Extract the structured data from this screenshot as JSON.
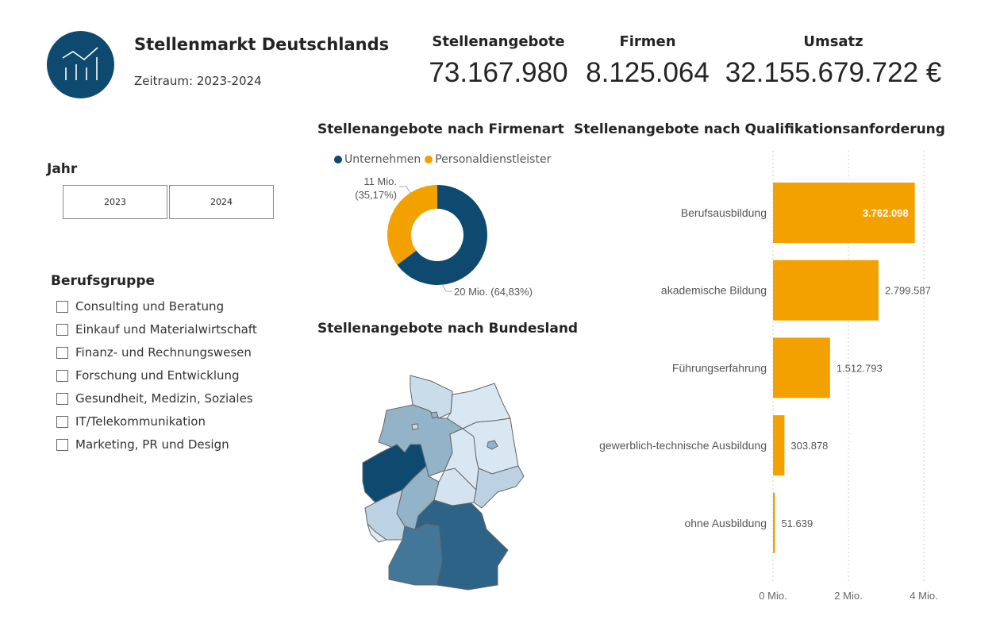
{
  "header": {
    "title": "Stellenmarkt Deutschlands",
    "subtitle": "Zeitraum: 2023-2024",
    "logo_icon": "chart-trend-icon"
  },
  "kpis": [
    {
      "label": "Stellenangebote",
      "value": "73.167.980"
    },
    {
      "label": "Firmen",
      "value": "8.125.064"
    },
    {
      "label": "Umsatz",
      "value": "32.155.679.722 €"
    }
  ],
  "year_slicer": {
    "title": "Jahr",
    "options": [
      "2023",
      "2024"
    ]
  },
  "group_slicer": {
    "title": "Berufsgruppe",
    "items": [
      "Consulting und Beratung",
      "Einkauf und Materialwirtschaft",
      "Finanz- und Rechnungswesen",
      "Forschung und Entwicklung",
      "Gesundheit, Medizin, Soziales",
      "IT/Telekommunikation",
      "Marketing, PR und Design"
    ]
  },
  "colors": {
    "primary": "#0e4a70",
    "accent": "#f2a100"
  },
  "chart_data": [
    {
      "type": "pie",
      "title": "Stellenangebote nach Firmenart",
      "legend": "top",
      "series": [
        {
          "name": "Unternehmen",
          "value": 64.83,
          "label": "20 Mio. (64,83%)",
          "color": "#0e4a70"
        },
        {
          "name": "Personaldienstleister",
          "value": 35.17,
          "label_line1": "11 Mio.",
          "label_line2": "(35,17%)",
          "color": "#f2a100"
        }
      ]
    },
    {
      "type": "map",
      "title": "Stellenangebote nach Bundesland",
      "fills": {
        "SH": "#c9dcea",
        "MV": "#d8e7f2",
        "HH": "#93b3c9",
        "HB": "#c9dcea",
        "NI": "#93b3c9",
        "NW": "#0e4a70",
        "HE": "#93b3c9",
        "RP": "#bcd2e3",
        "SL": "#dfebf5",
        "BW": "#43779a",
        "BY": "#2e6388",
        "TH": "#d3e3ef",
        "ST": "#d8e7f2",
        "BB": "#d8e7f2",
        "BE": "#93b3c9",
        "SN": "#bcd2e3"
      }
    },
    {
      "type": "bar",
      "orientation": "horizontal",
      "title": "Stellenangebote nach Qualifikationsanforderung",
      "categories": [
        "Berufsausbildung",
        "akademische Bildung",
        "Führungserfahrung",
        "gewerblich-technische Ausbildung",
        "ohne Ausbildung"
      ],
      "values": [
        3762098,
        2799587,
        1512793,
        303878,
        51639
      ],
      "labels": [
        "3.762.098",
        "2.799.587",
        "1.512.793",
        "303.878",
        "51.639"
      ],
      "xlim": [
        0,
        4000000
      ],
      "xticks": [
        "0 Mio.",
        "2 Mio.",
        "4 Mio."
      ],
      "grid": true,
      "color": "#f2a100"
    }
  ]
}
